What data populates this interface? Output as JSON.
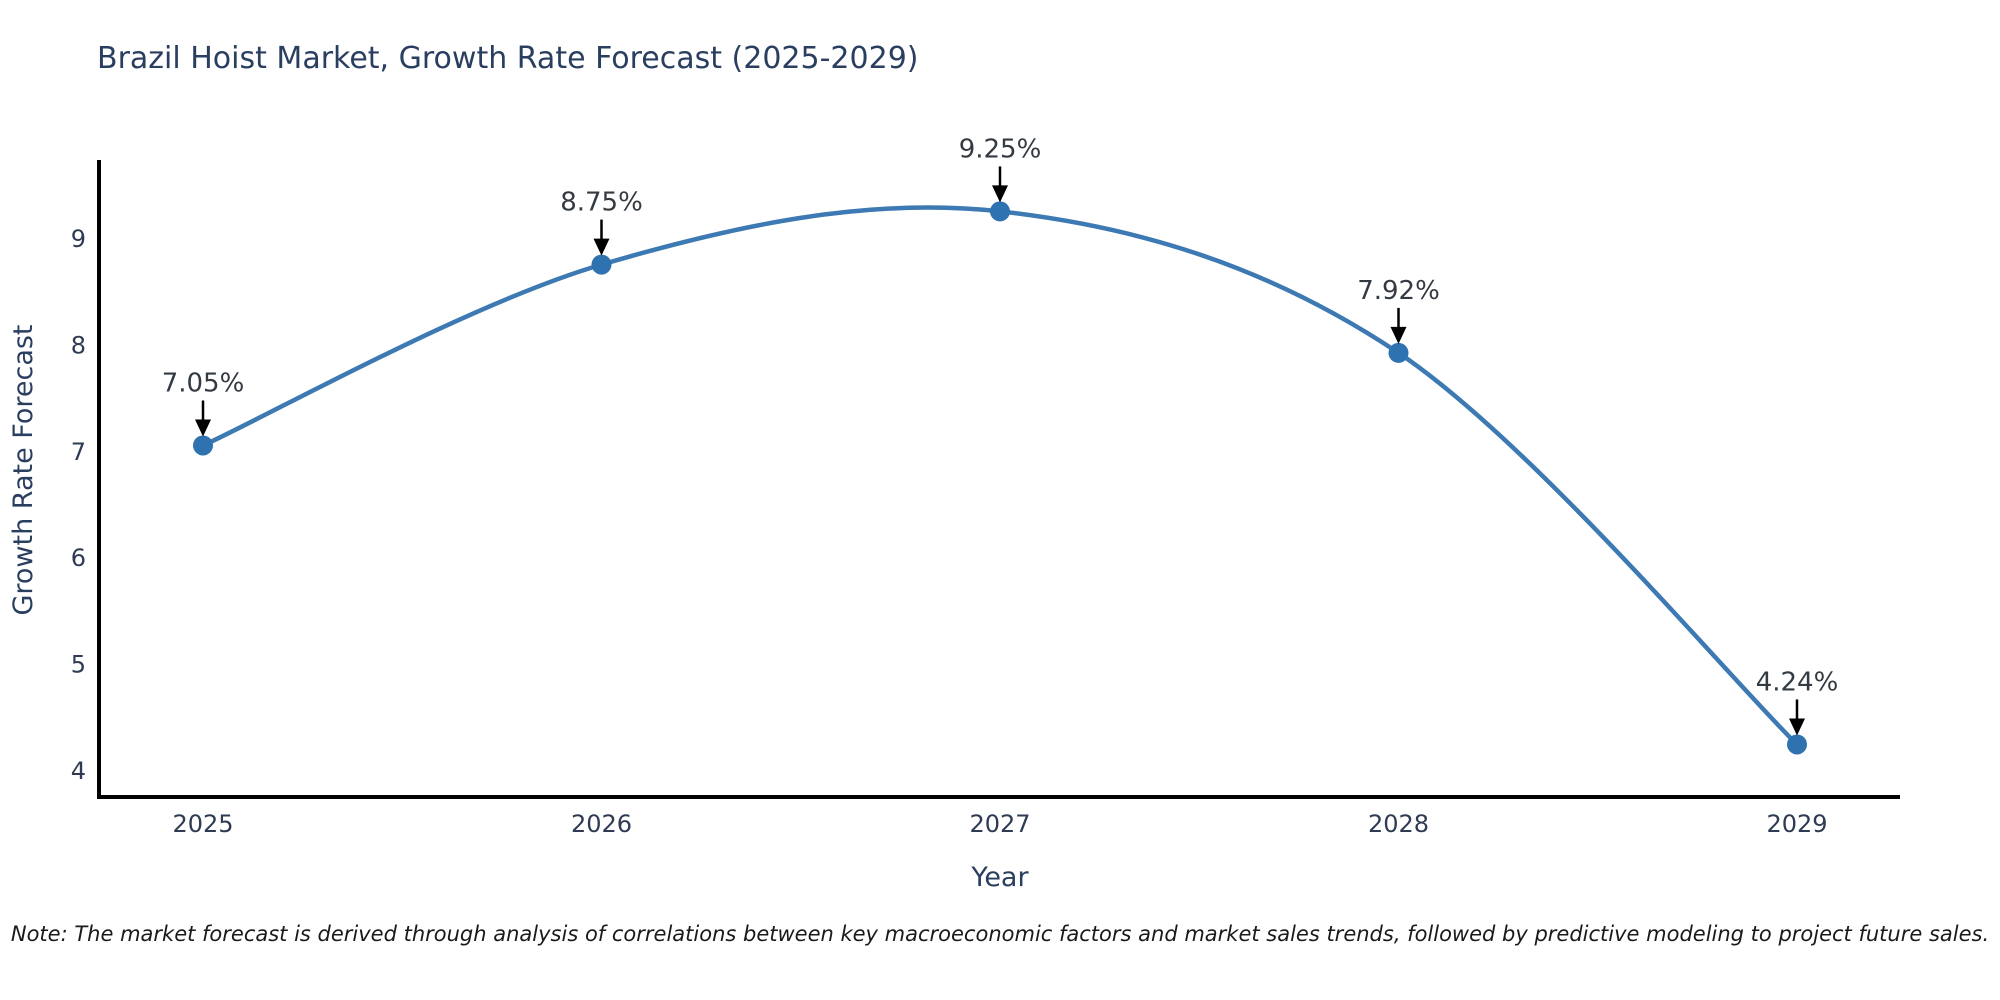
{
  "chart_data": {
    "type": "line",
    "title": "Brazil Hoist Market, Growth Rate Forecast (2025-2029)",
    "xlabel": "Year",
    "ylabel": "Growth Rate Forecast",
    "x": [
      "2025",
      "2026",
      "2027",
      "2028",
      "2029"
    ],
    "series": [
      {
        "name": "Growth Rate Forecast",
        "values": [
          7.05,
          8.75,
          9.25,
          7.92,
          4.24
        ]
      }
    ],
    "point_labels": [
      "7.05%",
      "8.75%",
      "9.25%",
      "7.92%",
      "4.24%"
    ],
    "yticks": [
      4,
      5,
      6,
      7,
      8,
      9
    ],
    "ylim": [
      3.75,
      9.75
    ],
    "line_shape": "spline",
    "grid": false,
    "legend": "none",
    "markers": true,
    "annotation_arrows": "down",
    "colors": {
      "line": "#3d79b2",
      "marker": "#2e72b0",
      "axis": "#000000",
      "title": "#2a3f5f",
      "tick": "#2f3b52",
      "annotation": "#333a42",
      "note": "#1a1a1a",
      "background": "#ffffff"
    },
    "note": "Note: The market forecast is derived through analysis of correlations between key macroeconomic factors and market sales trends, followed by predictive modeling to project future sales."
  }
}
